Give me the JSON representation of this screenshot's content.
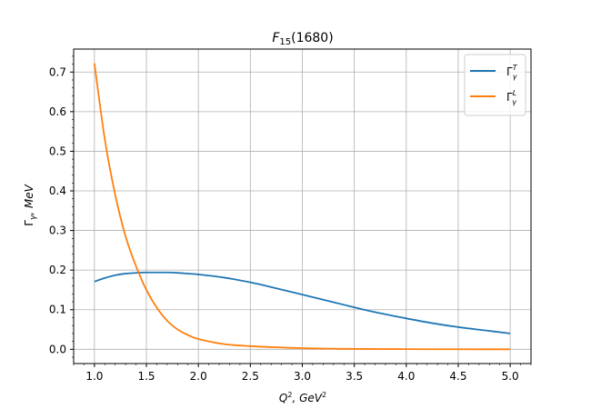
{
  "chart_data": {
    "type": "line",
    "title_main": "F",
    "title_sub": "15",
    "title_rest": "(1680)",
    "xlabel_main": "Q",
    "xlabel_sup": "2",
    "xlabel_mid": ", GeV",
    "xlabel_sup2": "2",
    "ylabel_main": "Γ",
    "ylabel_sub": "γ",
    "ylabel_rest": ", MeV",
    "xlim": [
      0.8,
      5.2
    ],
    "ylim": [
      -0.036,
      0.758
    ],
    "x_ticks": [
      1.0,
      1.5,
      2.0,
      2.5,
      3.0,
      3.5,
      4.0,
      4.5,
      5.0
    ],
    "x_tick_labels": [
      "1.0",
      "1.5",
      "2.0",
      "2.5",
      "3.0",
      "3.5",
      "4.0",
      "4.5",
      "5.0"
    ],
    "y_ticks": [
      0.0,
      0.1,
      0.2,
      0.3,
      0.4,
      0.5,
      0.6,
      0.7
    ],
    "y_tick_labels": [
      "0.0",
      "0.1",
      "0.2",
      "0.3",
      "0.4",
      "0.5",
      "0.6",
      "0.7"
    ],
    "grid": true,
    "legend_position": "top-right",
    "x": [
      1.0,
      1.1,
      1.2,
      1.3,
      1.4,
      1.5,
      1.6,
      1.7,
      1.8,
      1.9,
      2.0,
      2.25,
      2.5,
      2.75,
      3.0,
      3.25,
      3.5,
      3.75,
      4.0,
      4.25,
      4.5,
      4.75,
      5.0
    ],
    "series": [
      {
        "name_main": "Γ",
        "name_sub": "γ",
        "name_sup": "T",
        "color": "#1f77b4",
        "values": [
          0.171,
          0.18,
          0.187,
          0.191,
          0.193,
          0.194,
          0.194,
          0.194,
          0.193,
          0.191,
          0.189,
          0.181,
          0.169,
          0.154,
          0.138,
          0.122,
          0.106,
          0.091,
          0.078,
          0.066,
          0.056,
          0.048,
          0.04
        ]
      },
      {
        "name_main": "Γ",
        "name_sub": "γ",
        "name_sup": "L",
        "color": "#ff7f0e",
        "values": [
          0.722,
          0.53,
          0.39,
          0.285,
          0.21,
          0.15,
          0.105,
          0.072,
          0.05,
          0.036,
          0.026,
          0.013,
          0.008,
          0.005,
          0.003,
          0.0015,
          0.001,
          0.0007,
          0.0004,
          0.0002,
          0.0001,
          0.0,
          0.0
        ]
      }
    ]
  }
}
